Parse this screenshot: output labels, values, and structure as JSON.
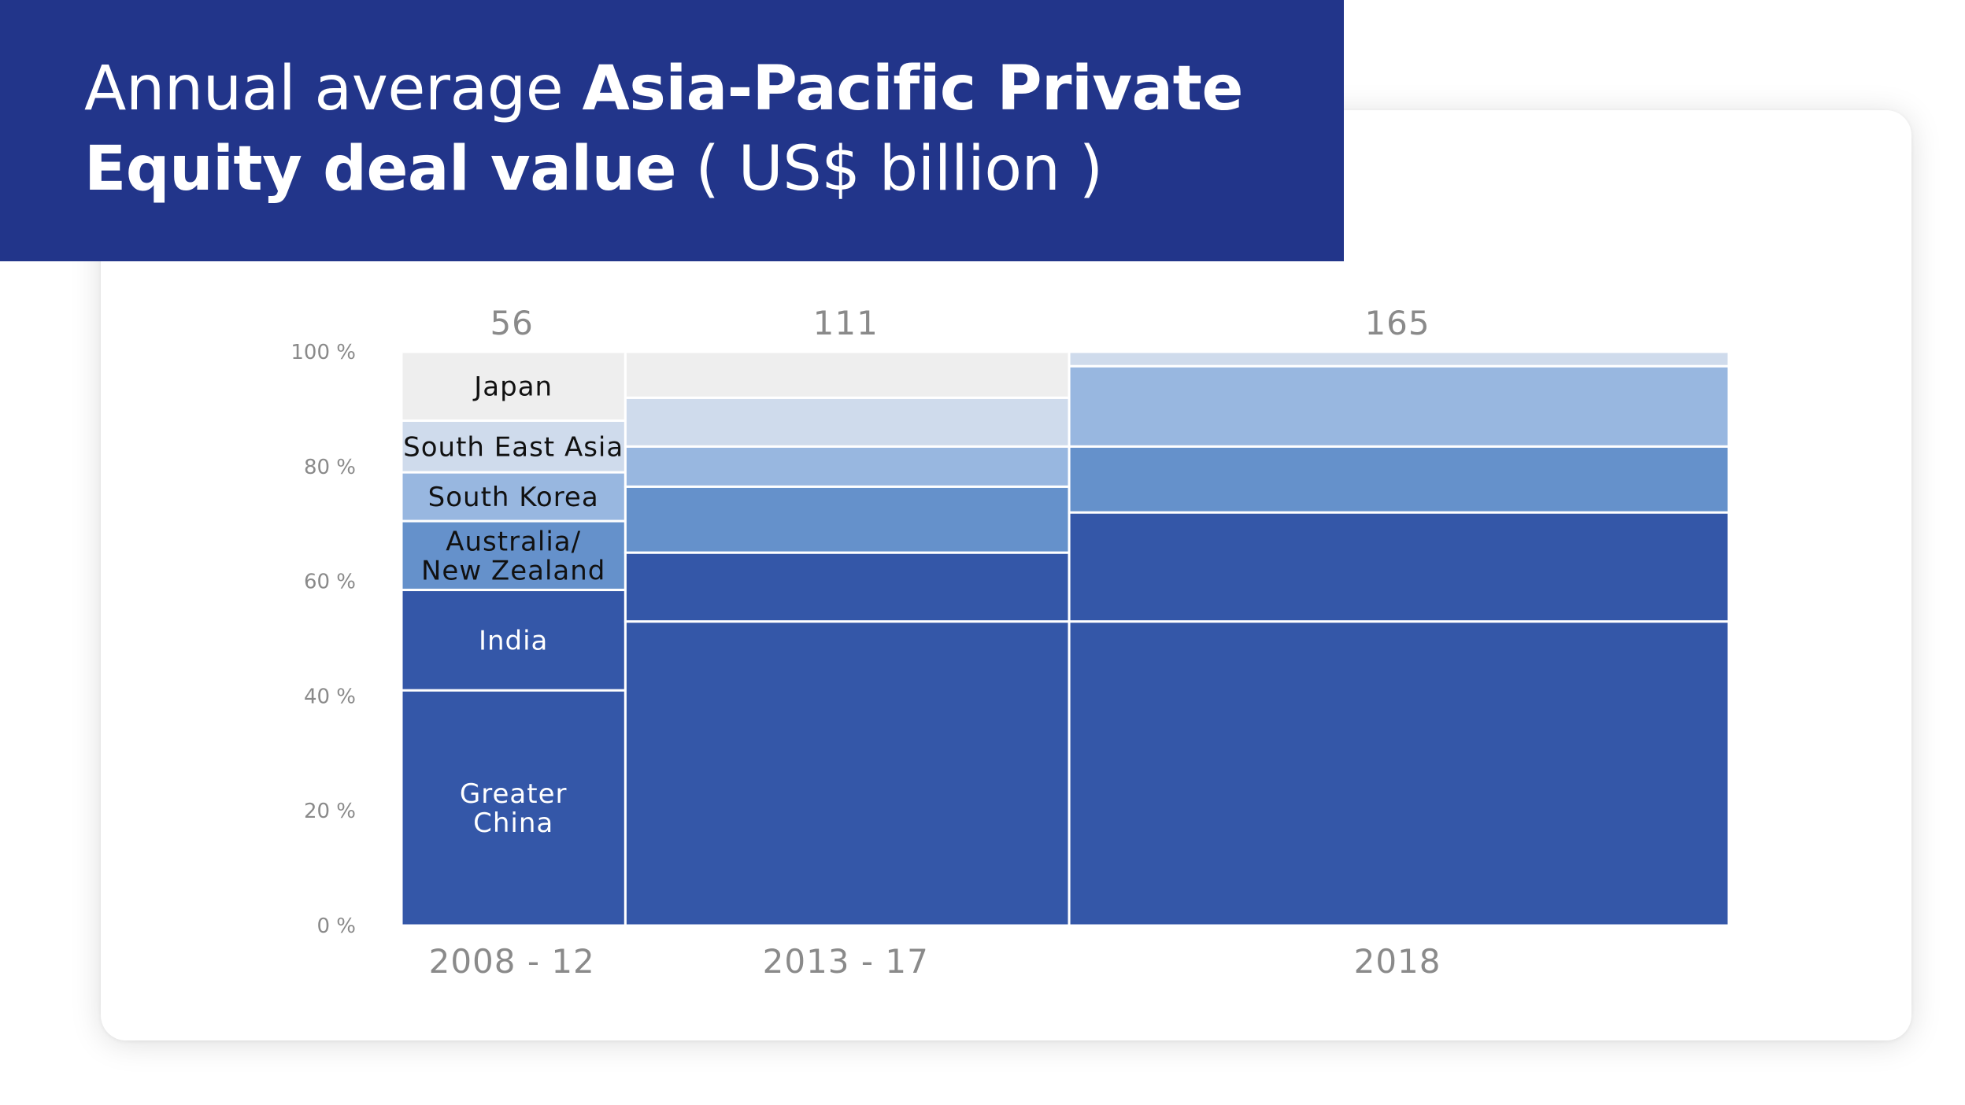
{
  "title": {
    "part1": "Annual average ",
    "part2_bold": "Asia-Pacific Private Equity deal value",
    "part3": " ( US$ billion )"
  },
  "colors": {
    "banner": "#22358a",
    "Greater China": "#3457a8",
    "India": "#3457a8",
    "Australia/ New Zealand": "#6591cb",
    "South Korea": "#98b7e0",
    "South East Asia": "#cfdbec",
    "Japan": "#eeeeee"
  },
  "chart_data": {
    "type": "bar",
    "subtype": "marimekko-100%-stacked",
    "title": "Annual average Asia-Pacific Private Equity deal value ( US$ billion )",
    "categories": [
      "2008 - 12",
      "2013 - 17",
      "2018"
    ],
    "totals": [
      56,
      111,
      165
    ],
    "ylim": [
      0,
      100
    ],
    "yticks": [
      "0 %",
      "20 %",
      "40 %",
      "60 %",
      "80 %",
      "100 %"
    ],
    "series": [
      {
        "name": "Greater China",
        "values": [
          41,
          53,
          53
        ]
      },
      {
        "name": "India",
        "values": [
          17.5,
          12,
          19
        ]
      },
      {
        "name": "Australia/ New Zealand",
        "values": [
          12,
          11.5,
          11.5
        ]
      },
      {
        "name": "South Korea",
        "values": [
          8.5,
          7,
          14
        ]
      },
      {
        "name": "South East Asia",
        "values": [
          9,
          8.5,
          2.5
        ]
      },
      {
        "name": "Japan",
        "values": [
          12,
          8,
          0
        ]
      }
    ],
    "labeled_category": "2008 - 12"
  }
}
